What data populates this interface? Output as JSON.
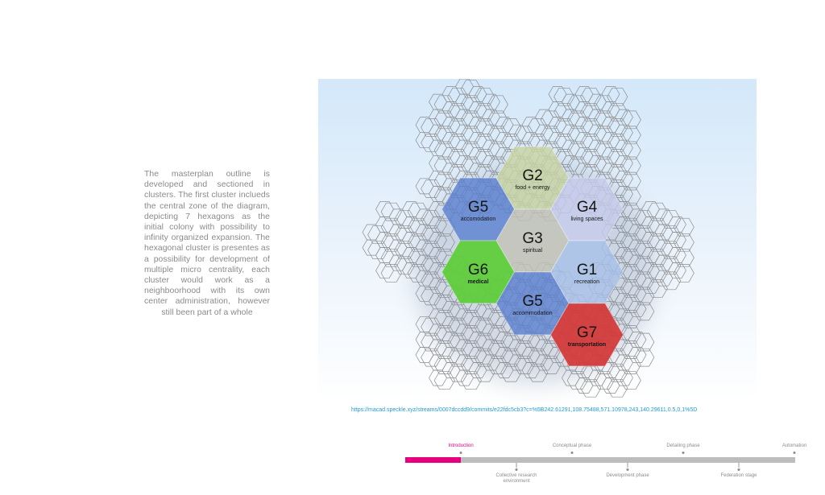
{
  "description": {
    "text": "The masterplan outline is developed and sectioned in clusters. The first cluster inclueds the central zone of the diagram, depicting 7 hexagons as the initial colony with possibility to infinity organized expansion. The hexagonal cluster is presentes as a possibility for development of multiple micro centrality, each cluster would work as a neighboorhood with its own center administration, however still been part of a whole"
  },
  "diagram": {
    "clusters": [
      {
        "code": "G2",
        "label": "food + energy",
        "color": "#c9d5a3"
      },
      {
        "code": "G5",
        "label": "accomodation",
        "color": "#5a7fd0"
      },
      {
        "code": "G4",
        "label": "living spaces",
        "color": "#c7cceb"
      },
      {
        "code": "G3",
        "label": "spiritual",
        "color": "#c3c3b5"
      },
      {
        "code": "G6",
        "label": "medical",
        "color": "#5fce3c"
      },
      {
        "code": "G1",
        "label": "recreation",
        "color": "#a7c1e9"
      },
      {
        "code": "G5",
        "label": "accommodation",
        "color": "#5a7fd0"
      },
      {
        "code": "G7",
        "label": "transportation",
        "color": "#d43b3b"
      }
    ]
  },
  "link": {
    "text": "https://macad.speckle.xyz/streams/0007dccdd9/commits/e22fdc5cb3?c=%5B242.61291,108.75488,571.10978,243,140.29611,0.5,0,1%5D"
  },
  "timeline": {
    "progress": 0.14,
    "stages": [
      {
        "label": "Introduction",
        "position": "top",
        "active": true
      },
      {
        "label": "Collective research environment",
        "position": "bottom",
        "active": false
      },
      {
        "label": "Conceptual phase",
        "position": "top",
        "active": false
      },
      {
        "label": "Development phase",
        "position": "bottom",
        "active": false
      },
      {
        "label": "Detailing phase",
        "position": "top",
        "active": false
      },
      {
        "label": "Federation stage",
        "position": "bottom",
        "active": false
      },
      {
        "label": "Automation",
        "position": "top",
        "active": false
      }
    ]
  }
}
